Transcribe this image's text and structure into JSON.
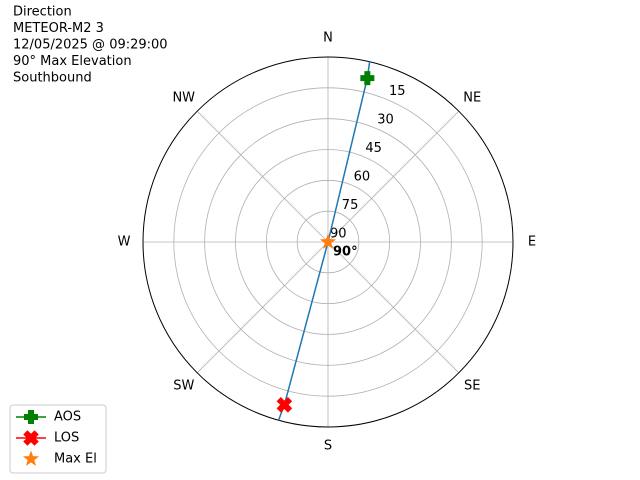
{
  "chart_data": {
    "type": "polar",
    "title": [
      "Direction",
      "METEOR-M2 3",
      "12/05/2025 @ 09:29:00",
      "90° Max Elevation",
      "Southbound"
    ],
    "xticks": [
      {
        "value": 0,
        "label": "N"
      },
      {
        "value": 45,
        "label": "NE"
      },
      {
        "value": 90,
        "label": "E"
      },
      {
        "value": 135,
        "label": "SE"
      },
      {
        "value": 180,
        "label": "S"
      },
      {
        "value": 225,
        "label": "SW"
      },
      {
        "value": 270,
        "label": "W"
      },
      {
        "value": 315,
        "label": "NW"
      }
    ],
    "ylim": [
      90,
      0
    ],
    "yticks": [
      15,
      30,
      45,
      60,
      75,
      90
    ],
    "grid": true,
    "legend": "lower left",
    "series": [
      {
        "color": "#1f77b4",
        "marker": "none",
        "x": [
          13,
          13.5,
          13.5,
          195,
          195.5
        ],
        "values": [
          0,
          8,
          90,
          8,
          0
        ]
      },
      {
        "name": "AOS",
        "color": "#008000",
        "marker": "plus",
        "x": [
          13.5
        ],
        "values": [
          8
        ]
      },
      {
        "name": "LOS",
        "color": "#ff0000",
        "marker": "x",
        "x": [
          195
        ],
        "values": [
          8
        ]
      },
      {
        "name": "Max El",
        "color": "#ff7f0e",
        "marker": "star",
        "x": [
          13.5
        ],
        "values": [
          90
        ]
      }
    ],
    "annotation": "90°"
  }
}
